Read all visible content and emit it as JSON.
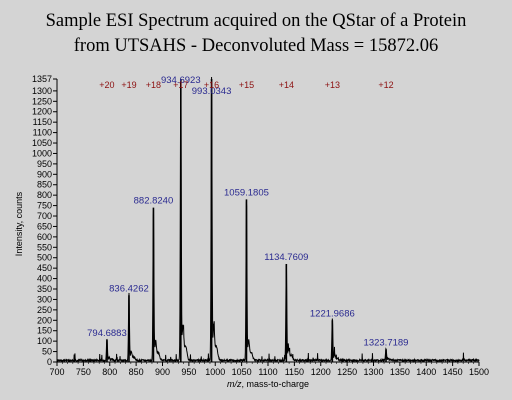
{
  "chart_data": {
    "type": "line",
    "title_line1": "Sample ESI Spectrum acquired on the QStar of a Protein",
    "title_line2": "from UTSAHS - Deconvoluted Mass = 15872.06",
    "xlabel_italic": "m/z",
    "xlabel_rest": ", mass-to-charge",
    "ylabel": "Intensity, counts",
    "xlim": [
      700,
      1500
    ],
    "ylim": [
      0,
      1357
    ],
    "xticks": [
      700,
      750,
      800,
      850,
      900,
      950,
      1000,
      1050,
      1100,
      1150,
      1200,
      1250,
      1300,
      1350,
      1400,
      1450,
      1500
    ],
    "yticks": [
      0,
      50,
      100,
      150,
      200,
      250,
      300,
      350,
      400,
      450,
      500,
      550,
      600,
      650,
      700,
      750,
      800,
      850,
      900,
      950,
      1000,
      1050,
      1100,
      1150,
      1200,
      1250,
      1300,
      1357
    ],
    "peaks": [
      {
        "mz": 794.6883,
        "intensity": 105,
        "label": "794.6883"
      },
      {
        "mz": 836.4262,
        "intensity": 320,
        "label": "836.4262"
      },
      {
        "mz": 882.824,
        "intensity": 740,
        "label": "882.8240"
      },
      {
        "mz": 934.6923,
        "intensity": 1357,
        "label": "934.6923"
      },
      {
        "mz": 993.0343,
        "intensity": 1357,
        "label": "993.0343"
      },
      {
        "mz": 1059.1805,
        "intensity": 780,
        "label": "1059.1805"
      },
      {
        "mz": 1134.7609,
        "intensity": 470,
        "label": "1134.7609"
      },
      {
        "mz": 1221.9686,
        "intensity": 200,
        "label": "1221.9686"
      },
      {
        "mz": 1323.7189,
        "intensity": 60,
        "label": "1323.7189"
      }
    ],
    "charge_states": [
      {
        "label": "+20",
        "mz": 794.6883
      },
      {
        "label": "+19",
        "mz": 836.4262
      },
      {
        "label": "+18",
        "mz": 882.824
      },
      {
        "label": "+17",
        "mz": 934.6923
      },
      {
        "label": "+16",
        "mz": 993.0343
      },
      {
        "label": "+15",
        "mz": 1059.1805
      },
      {
        "label": "+14",
        "mz": 1134.7609
      },
      {
        "label": "+13",
        "mz": 1221.9686
      },
      {
        "label": "+12",
        "mz": 1323.7189
      }
    ],
    "colors": {
      "background": "#d4d4d4",
      "trace": "#000000",
      "peak_label": "#2a2a90",
      "charge_label": "#8c1010"
    }
  }
}
